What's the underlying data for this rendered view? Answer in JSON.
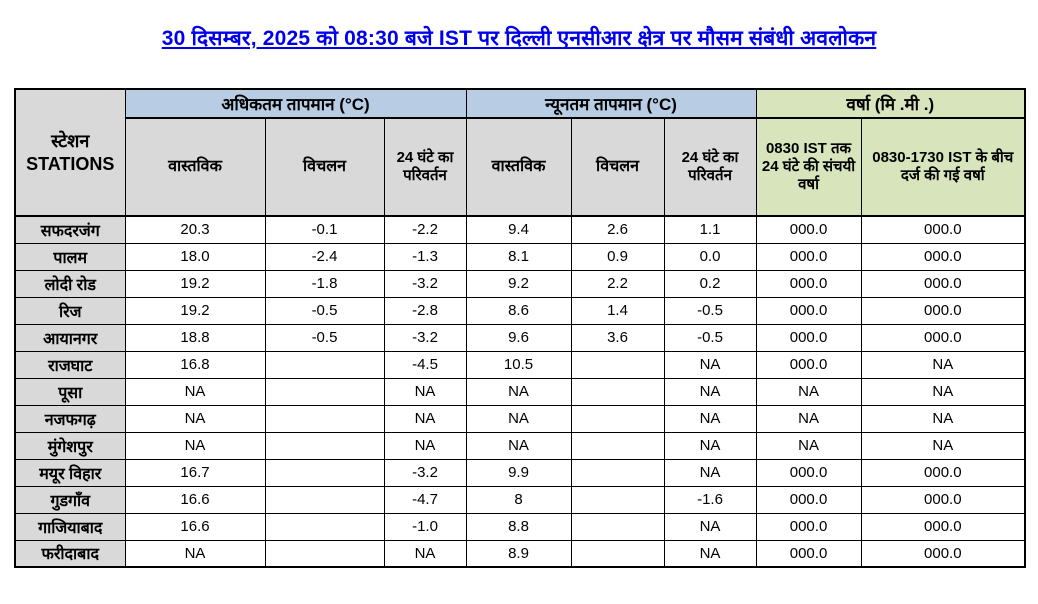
{
  "title": "30 दिसम्बर, 2025 को 08:30 बजे IST पर दिल्ली एनसीआर क्षेत्र पर मौसम संबंधी अवलोकन",
  "colors": {
    "title_text": "#0000ee",
    "temp_group_header_bg": "#b8cce4",
    "rain_group_header_bg": "#d7e4bc",
    "station_and_subheader_bg": "#d9d9d9",
    "grid_border": "#000000"
  },
  "table": {
    "station_header_line1": "स्टेशन",
    "station_header_line2": "STATIONS",
    "groups": [
      {
        "label": "अधिकतम तापमान  (°C)"
      },
      {
        "label": "न्यूनतम तापमान  (°C)"
      },
      {
        "label": "वर्षा  (मि .मी .)"
      }
    ],
    "sub_headers": [
      "वास्तविक",
      "विचलन",
      "24 घंटे का परिवर्तन",
      "वास्तविक",
      "विचलन",
      "24 घंटे का परिवर्तन",
      "0830 IST तक 24 घंटे की संचयी वर्षा",
      "0830-1730 IST के बीच दर्ज की गई वर्षा"
    ],
    "rows": [
      {
        "station": "सफदरजंग",
        "values": [
          "20.3",
          "-0.1",
          "-2.2",
          "9.4",
          "2.6",
          "1.1",
          "000.0",
          "000.0"
        ]
      },
      {
        "station": "पालम",
        "values": [
          "18.0",
          "-2.4",
          "-1.3",
          "8.1",
          "0.9",
          "0.0",
          "000.0",
          "000.0"
        ]
      },
      {
        "station": "लोदी रोड",
        "values": [
          "19.2",
          "-1.8",
          "-3.2",
          "9.2",
          "2.2",
          "0.2",
          "000.0",
          "000.0"
        ]
      },
      {
        "station": "रिज",
        "values": [
          "19.2",
          "-0.5",
          "-2.8",
          "8.6",
          "1.4",
          "-0.5",
          "000.0",
          "000.0"
        ]
      },
      {
        "station": "आयानगर",
        "values": [
          "18.8",
          "-0.5",
          "-3.2",
          "9.6",
          "3.6",
          "-0.5",
          "000.0",
          "000.0"
        ]
      },
      {
        "station": "राजघाट",
        "values": [
          "16.8",
          "",
          "-4.5",
          "10.5",
          "",
          "NA",
          "000.0",
          "NA"
        ]
      },
      {
        "station": "पूसा",
        "values": [
          "NA",
          "",
          "NA",
          "NA",
          "",
          "NA",
          "NA",
          "NA"
        ]
      },
      {
        "station": "नजफगढ़",
        "values": [
          "NA",
          "",
          "NA",
          "NA",
          "",
          "NA",
          "NA",
          "NA"
        ]
      },
      {
        "station": "मुंगेशपुर",
        "values": [
          "NA",
          "",
          "NA",
          "NA",
          "",
          "NA",
          "NA",
          "NA"
        ]
      },
      {
        "station": "मयूर विहार",
        "values": [
          "16.7",
          "",
          "-3.2",
          "9.9",
          "",
          "NA",
          "000.0",
          "000.0"
        ]
      },
      {
        "station": "गुडगाँव",
        "values": [
          "16.6",
          "",
          "-4.7",
          "8",
          "",
          "-1.6",
          "000.0",
          "000.0"
        ]
      },
      {
        "station": "गाजियाबाद",
        "values": [
          "16.6",
          "",
          "-1.0",
          "8.8",
          "",
          "NA",
          "000.0",
          "000.0"
        ]
      },
      {
        "station": "फरीदाबाद",
        "values": [
          "NA",
          "",
          "NA",
          "8.9",
          "",
          "NA",
          "000.0",
          "000.0"
        ]
      }
    ]
  }
}
